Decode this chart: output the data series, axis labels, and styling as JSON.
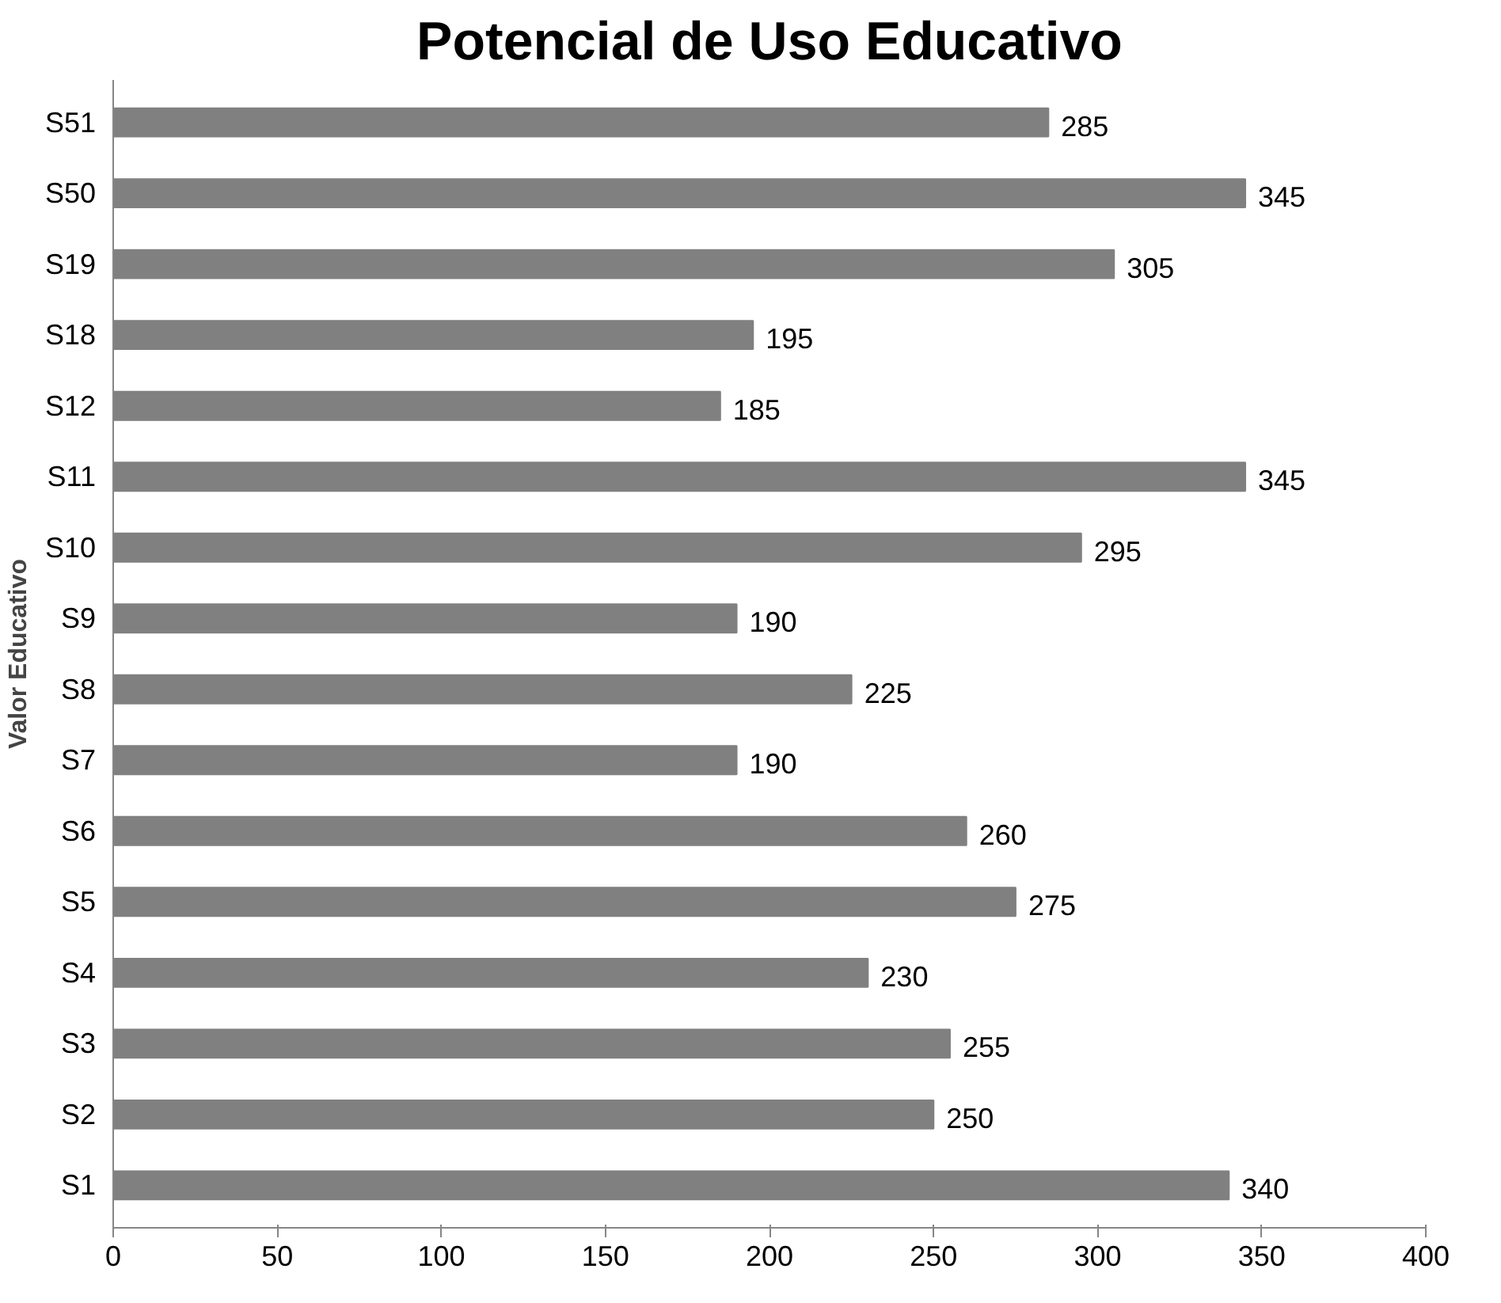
{
  "chart_data": {
    "type": "bar",
    "orientation": "horizontal",
    "title": "Potencial de Uso Educativo",
    "ylabel": "Valor Educativo",
    "categories": [
      "S51",
      "S50",
      "S19",
      "S18",
      "S12",
      "S11",
      "S10",
      "S9",
      "S8",
      "S7",
      "S6",
      "S5",
      "S4",
      "S3",
      "S2",
      "S1"
    ],
    "values": [
      285,
      345,
      305,
      195,
      185,
      345,
      295,
      190,
      225,
      190,
      260,
      275,
      230,
      255,
      250,
      340
    ],
    "color": "#808080",
    "xlim": [
      0,
      400
    ],
    "xticks": [
      0,
      50,
      100,
      150,
      200,
      250,
      300,
      350,
      400
    ],
    "data_labels": true,
    "grid": false
  }
}
